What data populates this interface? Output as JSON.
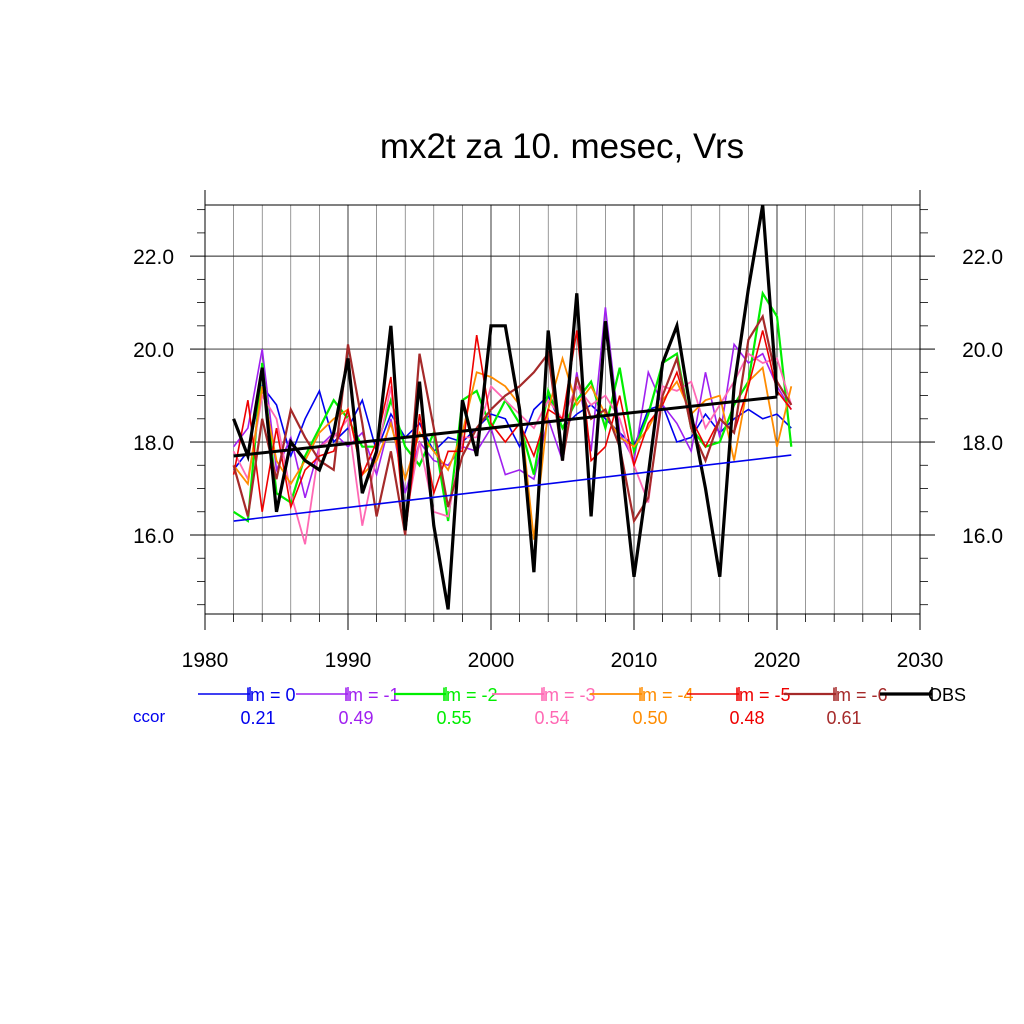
{
  "chart_data": {
    "type": "line",
    "title": "mx2t za 10. mesec, Vrs",
    "xlabel": "",
    "ylabel": "",
    "xlim": [
      1980,
      2030
    ],
    "ylim": [
      14.3,
      23.1
    ],
    "x_ticks": [
      1980,
      1990,
      2000,
      2010,
      2020,
      2030
    ],
    "x_tick_labels": [
      "1980",
      "1990",
      "2000",
      "2010",
      "2020",
      "2030"
    ],
    "y_ticks": [
      16.0,
      18.0,
      20.0,
      22.0
    ],
    "y_tick_labels": [
      "16.0",
      "18.0",
      "20.0",
      "22.0"
    ],
    "grid": true,
    "legend_position": "bottom",
    "ccor_label": "ccor",
    "series": [
      {
        "name": "lm = 0",
        "color": "#0000ee",
        "width": 1.6,
        "ccor": "0.21",
        "x": [
          1982,
          1983,
          1984,
          1985,
          1986,
          1987,
          1988,
          1989,
          1990,
          1991,
          1992,
          1993,
          1994,
          1995,
          1996,
          1997,
          1998,
          1999,
          2000,
          2001,
          2002,
          2003,
          2004,
          2005,
          2006,
          2007,
          2008,
          2009,
          2010,
          2011,
          2012,
          2013,
          2014,
          2015,
          2016,
          2017,
          2018,
          2019,
          2020,
          2021
        ],
        "y": [
          17.4,
          17.8,
          19.2,
          18.8,
          17.7,
          18.5,
          19.1,
          18.0,
          18.3,
          18.9,
          17.8,
          18.6,
          18.1,
          18.4,
          17.8,
          18.1,
          18.0,
          18.3,
          18.6,
          18.5,
          17.9,
          18.7,
          19.0,
          18.3,
          18.6,
          18.8,
          18.5,
          18.2,
          17.9,
          18.7,
          18.8,
          18.0,
          18.1,
          18.6,
          18.2,
          18.5,
          18.7,
          18.5,
          18.6,
          18.3
        ]
      },
      {
        "name": "lm = -1",
        "color": "#a020f0",
        "width": 1.6,
        "ccor": "0.49",
        "x": [
          1982,
          1983,
          1984,
          1985,
          1986,
          1987,
          1988,
          1989,
          1990,
          1991,
          1992,
          1993,
          1994,
          1995,
          1996,
          1997,
          1998,
          1999,
          2000,
          2001,
          2002,
          2003,
          2004,
          2005,
          2006,
          2007,
          2008,
          2009,
          2010,
          2011,
          2012,
          2013,
          2014,
          2015,
          2016,
          2017,
          2018,
          2019,
          2020,
          2021
        ],
        "y": [
          17.9,
          18.3,
          20.0,
          17.4,
          18.1,
          16.8,
          17.9,
          18.2,
          17.9,
          18.2,
          17.3,
          18.5,
          16.9,
          18.0,
          17.6,
          17.5,
          17.9,
          17.8,
          18.3,
          17.3,
          17.4,
          17.2,
          18.5,
          17.6,
          19.5,
          17.8,
          20.9,
          18.2,
          17.6,
          19.5,
          18.8,
          18.4,
          17.8,
          19.5,
          18.1,
          20.1,
          19.7,
          19.9,
          19.2,
          18.7
        ]
      },
      {
        "name": "lm = -2",
        "color": "#00ee00",
        "width": 2.2,
        "ccor": "0.55",
        "x": [
          1982,
          1983,
          1984,
          1985,
          1986,
          1987,
          1988,
          1989,
          1990,
          1991,
          1992,
          1993,
          1994,
          1995,
          1996,
          1997,
          1998,
          1999,
          2000,
          2001,
          2002,
          2003,
          2004,
          2005,
          2006,
          2007,
          2008,
          2009,
          2010,
          2011,
          2012,
          2013,
          2014,
          2015,
          2016,
          2017,
          2018,
          2019,
          2020,
          2021
        ],
        "y": [
          16.5,
          16.3,
          19.7,
          16.9,
          16.7,
          17.7,
          18.3,
          18.9,
          18.5,
          17.9,
          17.9,
          18.9,
          17.9,
          17.5,
          18.2,
          16.3,
          18.9,
          19.1,
          18.3,
          18.9,
          18.4,
          17.3,
          19.1,
          18.3,
          18.9,
          19.3,
          18.3,
          19.6,
          17.8,
          18.6,
          19.7,
          19.9,
          18.3,
          17.9,
          18.0,
          18.8,
          19.3,
          21.2,
          20.7,
          17.9
        ]
      },
      {
        "name": "lm = -3",
        "color": "#ff69b4",
        "width": 1.8,
        "ccor": "0.54",
        "x": [
          1982,
          1983,
          1984,
          1985,
          1986,
          1987,
          1988,
          1989,
          1990,
          1991,
          1992,
          1993,
          1994,
          1995,
          1996,
          1997,
          1998,
          1999,
          2000,
          2001,
          2002,
          2003,
          2004,
          2005,
          2006,
          2007,
          2008,
          2009,
          2010,
          2011,
          2012,
          2013,
          2014,
          2015,
          2016,
          2017,
          2018,
          2019,
          2020,
          2021
        ],
        "y": [
          17.8,
          17.2,
          19.0,
          18.5,
          16.9,
          15.8,
          17.9,
          18.1,
          18.5,
          16.2,
          17.7,
          19.2,
          16.3,
          18.0,
          16.5,
          16.4,
          18.1,
          18.1,
          19.2,
          18.9,
          18.6,
          18.3,
          18.9,
          18.5,
          19.2,
          18.8,
          19.0,
          18.5,
          17.5,
          16.7,
          19.2,
          19.1,
          19.3,
          18.3,
          18.8,
          19.3,
          19.9,
          19.7,
          19.8,
          18.8
        ]
      },
      {
        "name": "lm = -4",
        "color": "#ff8c00",
        "width": 1.8,
        "ccor": "0.50",
        "x": [
          1982,
          1983,
          1984,
          1985,
          1986,
          1987,
          1988,
          1989,
          1990,
          1991,
          1992,
          1993,
          1994,
          1995,
          1996,
          1997,
          1998,
          1999,
          2000,
          2001,
          2002,
          2003,
          2004,
          2005,
          2006,
          2007,
          2008,
          2009,
          2010,
          2011,
          2012,
          2013,
          2014,
          2015,
          2016,
          2017,
          2018,
          2019,
          2020,
          2021
        ],
        "y": [
          17.5,
          17.1,
          19.2,
          17.6,
          17.1,
          17.6,
          18.2,
          18.5,
          18.7,
          17.3,
          17.6,
          18.4,
          17.2,
          18.2,
          17.8,
          17.4,
          18.2,
          19.5,
          19.4,
          19.2,
          18.8,
          15.9,
          18.7,
          19.8,
          18.8,
          19.2,
          18.6,
          18.1,
          17.9,
          18.3,
          18.9,
          19.3,
          18.6,
          18.9,
          19.0,
          17.6,
          19.3,
          19.6,
          17.9,
          19.2
        ]
      },
      {
        "name": "lm = -5",
        "color": "#ee0000",
        "width": 1.6,
        "ccor": "0.48",
        "x": [
          1982,
          1983,
          1984,
          1985,
          1986,
          1987,
          1988,
          1989,
          1990,
          1991,
          1992,
          1993,
          1994,
          1995,
          1996,
          1997,
          1998,
          1999,
          2000,
          2001,
          2002,
          2003,
          2004,
          2005,
          2006,
          2007,
          2008,
          2009,
          2010,
          2011,
          2012,
          2013,
          2014,
          2015,
          2016,
          2017,
          2018,
          2019,
          2020,
          2021
        ],
        "y": [
          17.3,
          18.9,
          16.5,
          18.3,
          16.6,
          17.4,
          17.7,
          17.8,
          18.7,
          17.3,
          18.0,
          19.4,
          16.0,
          18.6,
          16.9,
          17.8,
          17.8,
          20.3,
          18.4,
          18.0,
          18.4,
          17.7,
          18.7,
          18.5,
          20.4,
          17.6,
          17.9,
          19.0,
          17.5,
          18.4,
          18.8,
          19.5,
          18.5,
          17.9,
          18.5,
          18.2,
          19.2,
          20.4,
          19.1,
          18.7
        ]
      },
      {
        "name": "lm = -6",
        "color": "#a52a2a",
        "width": 2.2,
        "ccor": "0.61",
        "x": [
          1982,
          1983,
          1984,
          1985,
          1986,
          1987,
          1988,
          1989,
          1990,
          1991,
          1992,
          1993,
          1994,
          1995,
          1996,
          1997,
          1998,
          1999,
          2000,
          2001,
          2002,
          2003,
          2004,
          2005,
          2006,
          2007,
          2008,
          2009,
          2010,
          2011,
          2012,
          2013,
          2014,
          2015,
          2016,
          2017,
          2018,
          2019,
          2020,
          2021
        ],
        "y": [
          17.5,
          16.4,
          18.5,
          17.2,
          18.7,
          18.1,
          17.6,
          17.4,
          20.1,
          18.4,
          16.4,
          17.8,
          16.0,
          19.9,
          18.3,
          16.6,
          17.7,
          18.3,
          18.7,
          19.0,
          19.2,
          19.5,
          19.9,
          17.6,
          19.4,
          18.5,
          18.7,
          17.9,
          16.3,
          16.8,
          19.0,
          19.8,
          18.3,
          17.6,
          18.5,
          18.2,
          20.2,
          20.7,
          19.3,
          18.8
        ]
      },
      {
        "name": "OBS",
        "color": "#000000",
        "width": 3.2,
        "ccor": "",
        "x": [
          1982,
          1983,
          1984,
          1985,
          1986,
          1987,
          1988,
          1989,
          1990,
          1991,
          1992,
          1993,
          1994,
          1995,
          1996,
          1997,
          1998,
          1999,
          2000,
          2001,
          2002,
          2003,
          2004,
          2005,
          2006,
          2007,
          2008,
          2009,
          2010,
          2011,
          2012,
          2013,
          2014,
          2015,
          2016,
          2017,
          2018,
          2019,
          2020
        ],
        "y": [
          18.5,
          17.7,
          19.6,
          16.5,
          18.0,
          17.6,
          17.4,
          18.2,
          19.8,
          16.9,
          17.8,
          20.5,
          16.1,
          19.3,
          16.2,
          14.4,
          18.9,
          17.7,
          20.5,
          20.5,
          18.7,
          15.2,
          20.4,
          17.6,
          21.2,
          16.4,
          20.6,
          17.9,
          15.1,
          17.3,
          19.7,
          20.5,
          18.6,
          17.0,
          15.1,
          19.2,
          21.3,
          23.1,
          19.0
        ]
      }
    ],
    "trend_lines": [
      {
        "color": "#0000ee",
        "width": 1.6,
        "x": [
          1982,
          2021
        ],
        "y": [
          16.3,
          17.72
        ]
      },
      {
        "color": "#000000",
        "width": 3.0,
        "x": [
          1982,
          2020
        ],
        "y": [
          17.7,
          18.97
        ]
      }
    ]
  }
}
